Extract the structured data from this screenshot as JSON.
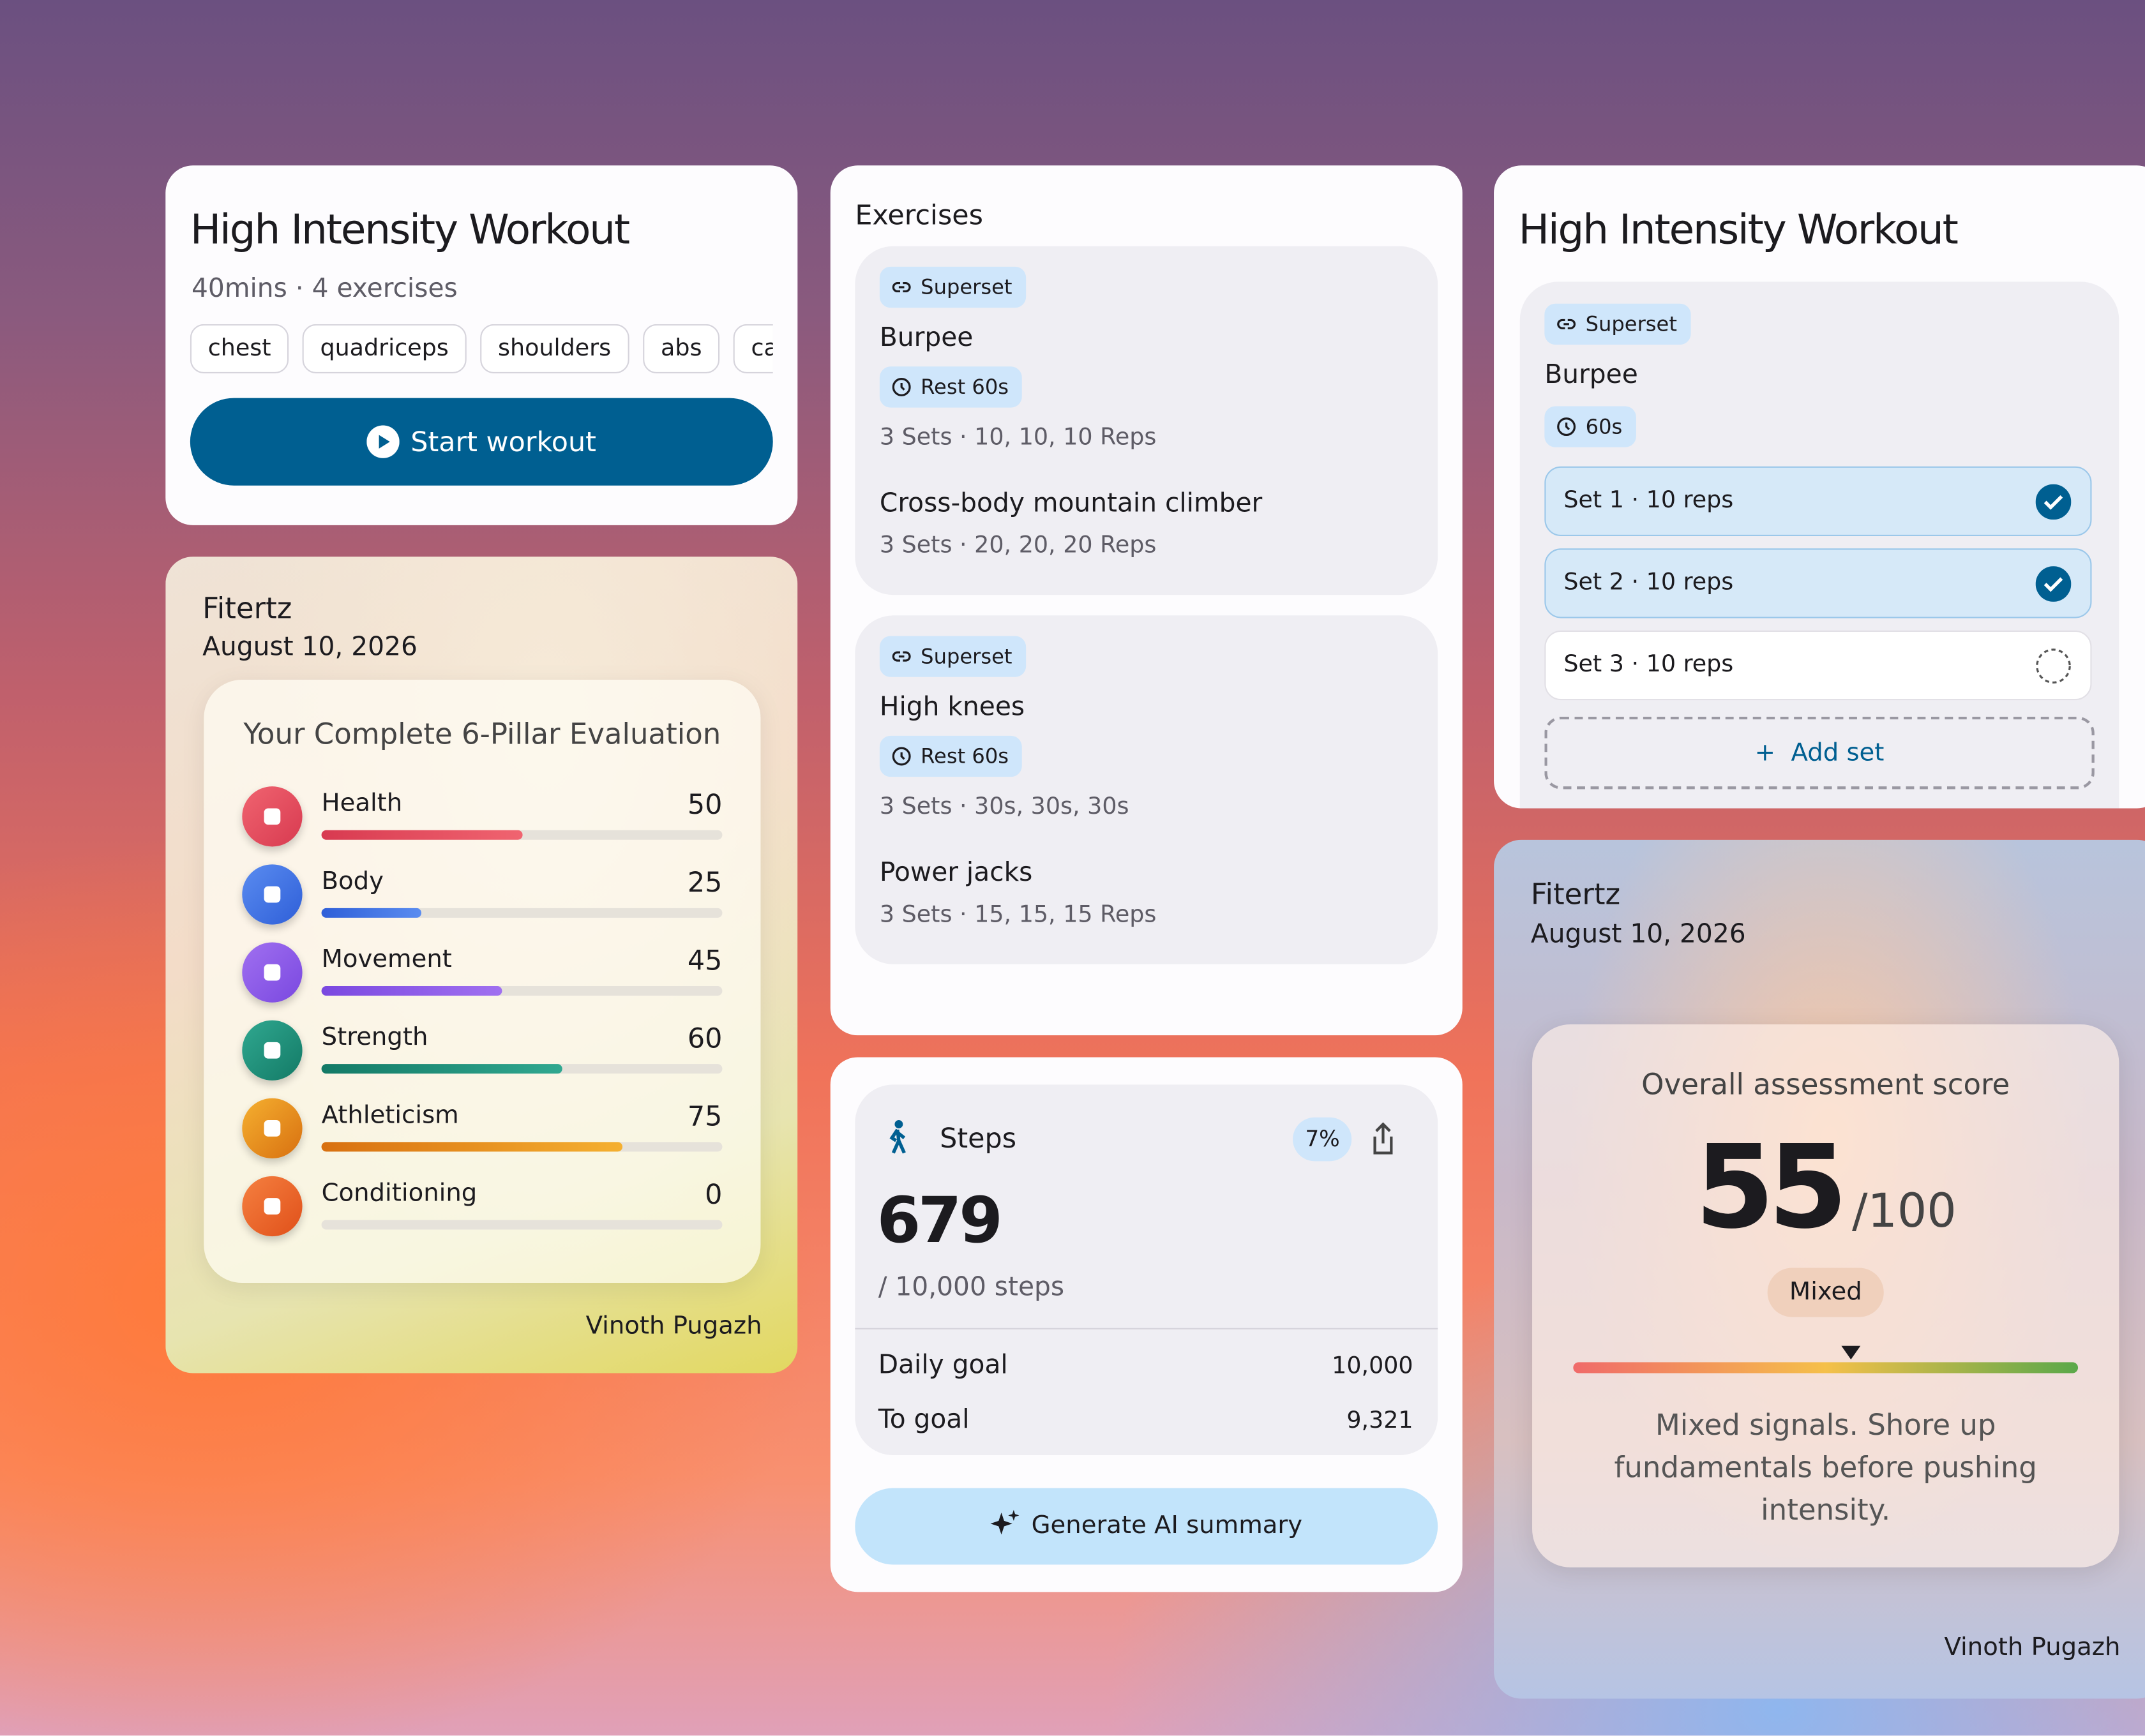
{
  "workout_card": {
    "title": "High Intensity Workout",
    "meta": "40mins · 4 exercises",
    "tags": [
      "chest",
      "quadriceps",
      "shoulders",
      "abs",
      "calves"
    ],
    "button": "Start workout"
  },
  "evaluation_card": {
    "brand": "Fitertz",
    "date": "August 10, 2026",
    "heading": "Your Complete 6-Pillar Evaluation",
    "pillars": [
      {
        "name": "Health",
        "score": 50
      },
      {
        "name": "Body",
        "score": 25
      },
      {
        "name": "Movement",
        "score": 45
      },
      {
        "name": "Strength",
        "score": 60
      },
      {
        "name": "Athleticism",
        "score": 75
      },
      {
        "name": "Conditioning",
        "score": 0
      }
    ],
    "author": "Vinoth Pugazh"
  },
  "exercises_card": {
    "title": "Exercises",
    "groups": [
      {
        "badge": "Superset",
        "items": [
          {
            "name": "Burpee",
            "rest": "Rest 60s",
            "detail": "3 Sets · 10, 10, 10 Reps"
          },
          {
            "name": "Cross-body mountain climber",
            "detail": "3 Sets · 20, 20, 20 Reps"
          }
        ]
      },
      {
        "badge": "Superset",
        "items": [
          {
            "name": "High knees",
            "rest": "Rest 60s",
            "detail": "3 Sets · 30s, 30s, 30s"
          },
          {
            "name": "Power jacks",
            "detail": "3 Sets · 15, 15, 15 Reps"
          }
        ]
      }
    ]
  },
  "steps_card": {
    "label": "Steps",
    "percent": "7%",
    "count": 679,
    "goal_text": "/ 10,000 steps",
    "rows": [
      {
        "label": "Daily goal",
        "value": "10,000"
      },
      {
        "label": "To goal",
        "value": "9,321"
      }
    ],
    "button": "Generate AI summary"
  },
  "sets_card": {
    "title": "High Intensity Workout",
    "badge": "Superset",
    "exercise": "Burpee",
    "rest": "60s",
    "sets": [
      {
        "label": "Set 1 · 10 reps",
        "done": true
      },
      {
        "label": "Set 2 · 10 reps",
        "done": true
      },
      {
        "label": "Set 3 · 10 reps",
        "done": false
      }
    ],
    "add": "Add set"
  },
  "score_card": {
    "brand": "Fitertz",
    "date": "August 10, 2026",
    "heading": "Overall assessment score",
    "score": 55,
    "score_max": {
      "value": 100,
      "label": "/100"
    },
    "badge": "Mixed",
    "message": "Mixed signals. Shore up fundamentals before pushing intensity.",
    "author": "Vinoth Pugazh"
  }
}
